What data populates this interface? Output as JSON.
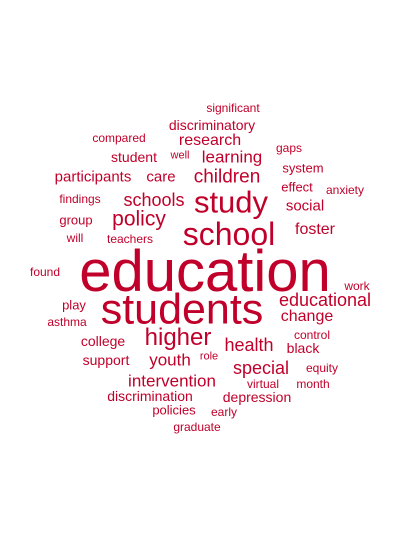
{
  "color": "#c0002a",
  "words": {
    "education": "education",
    "students": "students",
    "school": "school",
    "study": "study",
    "higher": "higher",
    "policy": "policy",
    "schools": "schools",
    "children": "children",
    "learning": "learning",
    "research": "research",
    "educational": "educational",
    "special": "special",
    "health": "health",
    "intervention": "intervention",
    "youth": "youth",
    "change": "change",
    "foster": "foster",
    "social": "social",
    "discrimination": "discrimination",
    "depression": "depression",
    "college": "college",
    "black": "black",
    "discriminatory": "discriminatory",
    "participants": "participants",
    "care": "care",
    "student": "student",
    "support": "support",
    "policies": "policies",
    "significant": "significant",
    "compared": "compared",
    "gaps": "gaps",
    "well": "well",
    "system": "system",
    "effect": "effect",
    "anxiety": "anxiety",
    "findings": "findings",
    "group": "group",
    "will": "will",
    "teachers": "teachers",
    "found": "found",
    "work": "work",
    "play": "play",
    "asthma": "asthma",
    "control": "control",
    "role": "role",
    "equity": "equity",
    "virtual": "virtual",
    "month": "month",
    "early": "early",
    "graduate": "graduate"
  }
}
